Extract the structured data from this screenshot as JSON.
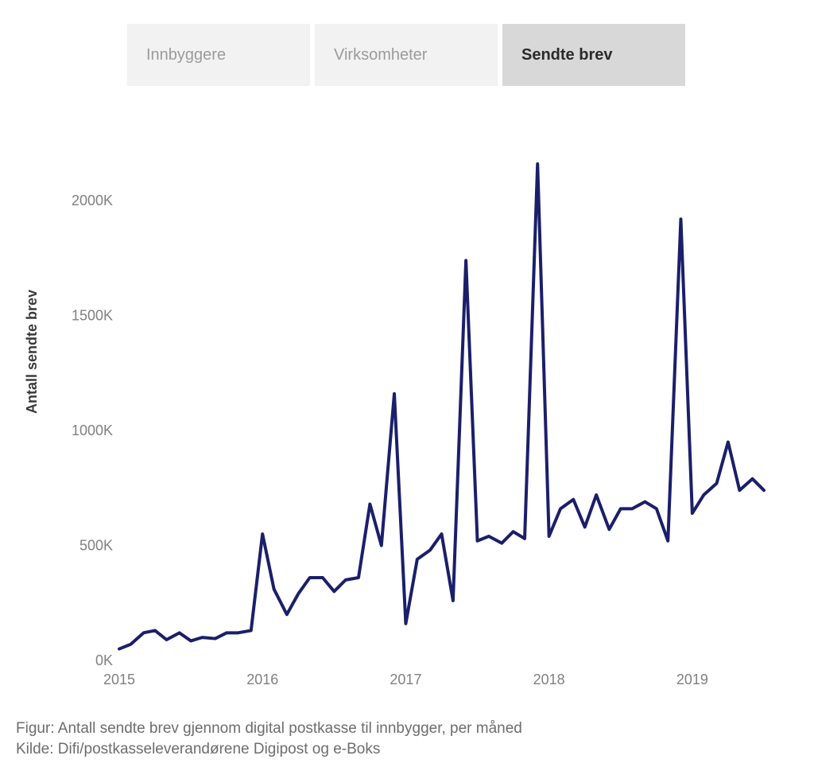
{
  "tabs": [
    {
      "label": "Innbyggere",
      "active": false
    },
    {
      "label": "Virksomheter",
      "active": false
    },
    {
      "label": "Sendte brev",
      "active": true
    }
  ],
  "chart": {
    "type": "line",
    "ylabel": "Antall sendte brev",
    "background_color": "#ffffff",
    "line_color": "#1b1f6a",
    "line_width": 4,
    "axis_text_color": "#808080",
    "axis_fontsize": 18,
    "ylabel_fontsize": 18,
    "y": {
      "min": 0,
      "max": 2250,
      "ticks": [
        0,
        500,
        1000,
        1500,
        2000
      ],
      "tick_labels": [
        "0K",
        "500K",
        "1000K",
        "1500K",
        "2000K"
      ]
    },
    "x": {
      "min": 2015.0,
      "max": 2019.55,
      "ticks": [
        2015,
        2016,
        2017,
        2018,
        2019
      ],
      "tick_labels": [
        "2015",
        "2016",
        "2017",
        "2018",
        "2019"
      ]
    },
    "series": [
      {
        "name": "sendte_brev",
        "color": "#1b1f6a",
        "points": [
          [
            2015.0,
            50
          ],
          [
            2015.08,
            70
          ],
          [
            2015.17,
            120
          ],
          [
            2015.25,
            130
          ],
          [
            2015.33,
            90
          ],
          [
            2015.42,
            120
          ],
          [
            2015.5,
            85
          ],
          [
            2015.58,
            100
          ],
          [
            2015.67,
            95
          ],
          [
            2015.75,
            120
          ],
          [
            2015.83,
            120
          ],
          [
            2015.92,
            130
          ],
          [
            2016.0,
            550
          ],
          [
            2016.08,
            310
          ],
          [
            2016.17,
            200
          ],
          [
            2016.25,
            290
          ],
          [
            2016.33,
            360
          ],
          [
            2016.42,
            360
          ],
          [
            2016.5,
            300
          ],
          [
            2016.58,
            350
          ],
          [
            2016.67,
            360
          ],
          [
            2016.75,
            680
          ],
          [
            2016.83,
            500
          ],
          [
            2016.92,
            1160
          ],
          [
            2017.0,
            160
          ],
          [
            2017.08,
            440
          ],
          [
            2017.17,
            480
          ],
          [
            2017.25,
            550
          ],
          [
            2017.33,
            260
          ],
          [
            2017.42,
            1740
          ],
          [
            2017.5,
            520
          ],
          [
            2017.58,
            540
          ],
          [
            2017.67,
            510
          ],
          [
            2017.75,
            560
          ],
          [
            2017.83,
            530
          ],
          [
            2017.92,
            2160
          ],
          [
            2018.0,
            540
          ],
          [
            2018.08,
            660
          ],
          [
            2018.17,
            700
          ],
          [
            2018.25,
            580
          ],
          [
            2018.33,
            720
          ],
          [
            2018.42,
            570
          ],
          [
            2018.5,
            660
          ],
          [
            2018.58,
            660
          ],
          [
            2018.67,
            690
          ],
          [
            2018.75,
            660
          ],
          [
            2018.83,
            520
          ],
          [
            2018.92,
            1920
          ],
          [
            2019.0,
            640
          ],
          [
            2019.08,
            720
          ],
          [
            2019.17,
            770
          ],
          [
            2019.25,
            950
          ],
          [
            2019.33,
            740
          ],
          [
            2019.42,
            790
          ],
          [
            2019.5,
            740
          ]
        ]
      }
    ]
  },
  "caption_line1": "Figur: Antall sendte brev gjennom digital postkasse til innbygger, per måned",
  "caption_line2": "Kilde: Difi/postkasseleverandørene Digipost og e-Boks",
  "tab_colors": {
    "inactive_bg": "#f2f2f2",
    "inactive_text": "#9b9b9b",
    "active_bg": "#d8d8d8",
    "active_text": "#2a2a2a"
  }
}
